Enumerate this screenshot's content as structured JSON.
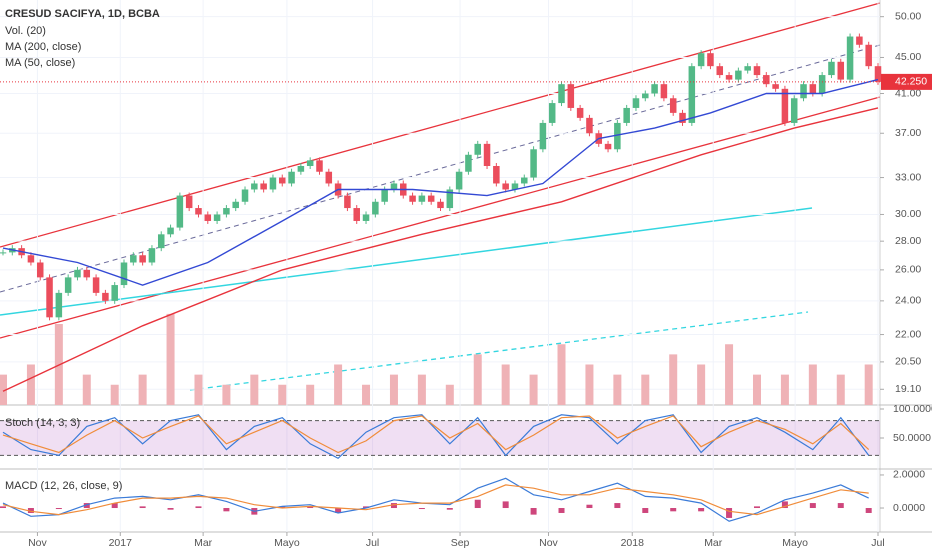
{
  "chart_data": {
    "type": "candlestick",
    "title": "CRESUD SACIFYA, 1D, BCBA",
    "log_scale": true,
    "ylim": [
      18.34,
      52.2
    ],
    "yticks": [
      {
        "value": 19.1,
        "label": "19.10"
      },
      {
        "value": 20.5,
        "label": "20.50"
      },
      {
        "value": 22,
        "label": "22.00"
      },
      {
        "value": 24,
        "label": "24.00"
      },
      {
        "value": 26,
        "label": "26.00"
      },
      {
        "value": 28,
        "label": "28.00"
      },
      {
        "value": 30,
        "label": "30.00"
      },
      {
        "value": 33,
        "label": "33.00"
      },
      {
        "value": 37,
        "label": "37.00"
      },
      {
        "value": 41,
        "label": "41.00"
      },
      {
        "value": 45,
        "label": "45.00"
      },
      {
        "value": 50,
        "label": "50.00"
      }
    ],
    "xlim": [
      0,
      94
    ],
    "xticks": [
      {
        "value": 3.7,
        "label": "Nov"
      },
      {
        "value": 12.6,
        "label": "2017"
      },
      {
        "value": 21.5,
        "label": "Mar"
      },
      {
        "value": 30.5,
        "label": "Mayo"
      },
      {
        "value": 39.7,
        "label": "Jul"
      },
      {
        "value": 49.1,
        "label": "Sep"
      },
      {
        "value": 58.6,
        "label": "Nov"
      },
      {
        "value": 67.6,
        "label": "2018"
      },
      {
        "value": 76.3,
        "label": "Mar"
      },
      {
        "value": 85.1,
        "label": "Mayo"
      },
      {
        "value": 94,
        "label": "Jul"
      }
    ],
    "price": {
      "up_color": "#53b987",
      "down_color": "#eb4d5c",
      "values": [
        27.2,
        27.5,
        27.0,
        26.5,
        25.5,
        23.0,
        24.5,
        25.5,
        26.0,
        25.5,
        24.5,
        24.0,
        25.0,
        26.5,
        27.0,
        26.5,
        27.5,
        28.5,
        29.0,
        31.5,
        30.5,
        30.0,
        29.5,
        30.0,
        30.5,
        31.0,
        32.0,
        32.5,
        32.0,
        33.0,
        32.5,
        33.5,
        34.0,
        34.5,
        33.5,
        32.5,
        31.5,
        30.5,
        29.5,
        30.0,
        31.0,
        32.0,
        32.5,
        31.5,
        31.0,
        31.5,
        31.0,
        30.5,
        32.0,
        33.5,
        35.0,
        36.0,
        34.0,
        32.5,
        32.0,
        32.5,
        33.0,
        35.5,
        38.0,
        40.0,
        42.0,
        39.5,
        38.5,
        37.0,
        36.0,
        35.5,
        38.0,
        39.5,
        40.5,
        41.0,
        42.0,
        40.5,
        39.0,
        38.0,
        44.0,
        45.5,
        44.0,
        43.0,
        42.5,
        43.5,
        44.0,
        43.0,
        42.0,
        41.5,
        38.0,
        40.5,
        42.0,
        41.0,
        43.0,
        44.5,
        42.5,
        47.5,
        46.5,
        44.0,
        42.25
      ]
    },
    "last_price": {
      "value": 42.25,
      "label": "42.250",
      "color": "#e8333c"
    },
    "volume": {
      "name": "Vol. (20)",
      "color": "#efb2b6",
      "ylim": [
        0,
        40
      ],
      "x": [
        0,
        3,
        6,
        9,
        12,
        15,
        18,
        21,
        24,
        27,
        30,
        33,
        36,
        39,
        42,
        45,
        48,
        51,
        54,
        57,
        60,
        63,
        66,
        69,
        72,
        75,
        78,
        81,
        84,
        87,
        90,
        93
      ],
      "values": [
        3,
        4,
        8,
        3,
        2,
        3,
        9,
        3,
        2,
        3,
        2,
        2,
        4,
        2,
        3,
        3,
        2,
        5,
        4,
        3,
        6,
        4,
        3,
        3,
        5,
        4,
        6,
        3,
        3,
        4,
        3,
        4
      ]
    },
    "series": [
      {
        "name": "MA (200, close)",
        "color": "#e8333c",
        "x": [
          0,
          15,
          30,
          45,
          60,
          75,
          85,
          94
        ],
        "values": [
          19.0,
          22.5,
          26.0,
          28.5,
          31.0,
          35.0,
          37.5,
          39.5
        ]
      },
      {
        "name": "MA (50, close)",
        "color": "#3349d4",
        "x": [
          0,
          8,
          15,
          22,
          30,
          36,
          44,
          52,
          58,
          64,
          70,
          76,
          82,
          88,
          94
        ],
        "values": [
          27.5,
          26.5,
          25.0,
          26.5,
          29.5,
          32.0,
          32.0,
          31.5,
          32.5,
          36.5,
          37.5,
          39.0,
          41.0,
          41.0,
          42.5
        ]
      }
    ],
    "stoch": {
      "name": "Stoch (14, 3, 3)",
      "ylim": [
        0,
        100
      ],
      "yticks": [
        {
          "value": 100,
          "label": "100.0000"
        },
        {
          "value": 50,
          "label": "50.0000"
        }
      ],
      "bands": [
        20,
        80
      ],
      "x": [
        0,
        3,
        6,
        9,
        12,
        15,
        18,
        21,
        24,
        27,
        30,
        33,
        36,
        39,
        42,
        45,
        48,
        51,
        54,
        57,
        60,
        63,
        66,
        69,
        72,
        75,
        78,
        81,
        84,
        87,
        90,
        93
      ],
      "series": [
        {
          "color": "#3b7bd8",
          "values": [
            60,
            30,
            20,
            70,
            85,
            40,
            80,
            90,
            30,
            70,
            85,
            40,
            15,
            60,
            85,
            90,
            40,
            85,
            20,
            70,
            90,
            85,
            40,
            80,
            90,
            25,
            70,
            85,
            60,
            30,
            85,
            20
          ]
        },
        {
          "color": "#f08c3a",
          "values": [
            55,
            40,
            25,
            55,
            80,
            50,
            70,
            88,
            40,
            60,
            80,
            50,
            25,
            45,
            80,
            88,
            50,
            75,
            30,
            55,
            85,
            88,
            50,
            70,
            88,
            35,
            60,
            80,
            65,
            40,
            75,
            30
          ]
        }
      ]
    },
    "macd": {
      "name": "MACD (12, 26, close, 9)",
      "ylim": [
        -1.33,
        2.3
      ],
      "yticks": [
        {
          "value": 2,
          "label": "2.0000"
        },
        {
          "value": 0,
          "label": "0.0000"
        }
      ],
      "x": [
        0,
        3,
        6,
        9,
        12,
        15,
        18,
        21,
        24,
        27,
        30,
        33,
        36,
        39,
        42,
        45,
        48,
        51,
        54,
        57,
        60,
        63,
        66,
        69,
        72,
        75,
        78,
        81,
        84,
        87,
        90,
        93
      ],
      "series": [
        {
          "color": "#3b7bd8",
          "values": [
            0.3,
            -0.5,
            -0.4,
            0.2,
            0.6,
            0.7,
            0.5,
            0.8,
            0.4,
            -0.2,
            0.1,
            0.2,
            -0.3,
            0.0,
            0.5,
            0.3,
            0.2,
            1.2,
            1.8,
            0.8,
            0.5,
            1.0,
            1.5,
            0.7,
            0.6,
            0.3,
            -0.8,
            -0.3,
            0.5,
            0.9,
            1.4,
            0.6
          ]
        },
        {
          "color": "#f08c3a",
          "values": [
            0.2,
            -0.2,
            -0.4,
            -0.1,
            0.3,
            0.6,
            0.6,
            0.7,
            0.6,
            0.2,
            0.0,
            0.1,
            0.0,
            -0.1,
            0.2,
            0.3,
            0.3,
            0.7,
            1.4,
            1.2,
            0.8,
            0.8,
            1.2,
            1.0,
            0.8,
            0.5,
            -0.2,
            -0.4,
            0.1,
            0.6,
            1.1,
            0.9
          ]
        }
      ],
      "histogram": {
        "color": "#c2185b",
        "values": [
          0.1,
          -0.3,
          0.0,
          0.3,
          0.3,
          0.1,
          -0.1,
          0.1,
          -0.2,
          -0.4,
          0.1,
          0.1,
          -0.3,
          0.1,
          0.3,
          0.0,
          -0.1,
          0.5,
          0.4,
          -0.4,
          -0.3,
          0.2,
          0.3,
          -0.3,
          -0.2,
          -0.2,
          -0.6,
          0.1,
          0.4,
          0.3,
          0.3,
          -0.3
        ]
      }
    }
  }
}
